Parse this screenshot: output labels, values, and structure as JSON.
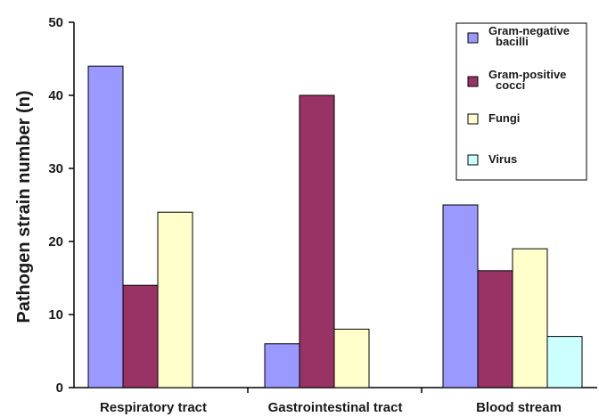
{
  "chart_data": {
    "type": "bar",
    "title": "",
    "xlabel": "",
    "ylabel": "Pathogen strain number (n)",
    "ylim": [
      0,
      50
    ],
    "yticks": [
      0,
      10,
      20,
      30,
      40,
      50
    ],
    "categories": [
      "Respiratory tract",
      "Gastrointestinal tract",
      "Blood stream"
    ],
    "series": [
      {
        "name_lines": [
          "Gram-negative",
          "bacilli"
        ],
        "color": "#9999ff",
        "values": [
          44,
          6,
          25
        ]
      },
      {
        "name_lines": [
          "Gram-positive",
          "cocci"
        ],
        "color": "#993366",
        "values": [
          14,
          40,
          16
        ]
      },
      {
        "name_lines": [
          "Fungi"
        ],
        "color": "#ffffcc",
        "values": [
          24,
          8,
          19
        ]
      },
      {
        "name_lines": [
          "Virus"
        ],
        "color": "#ccffff",
        "values": [
          0,
          0,
          7
        ]
      }
    ],
    "legend_position": "top-right",
    "grid": false
  }
}
